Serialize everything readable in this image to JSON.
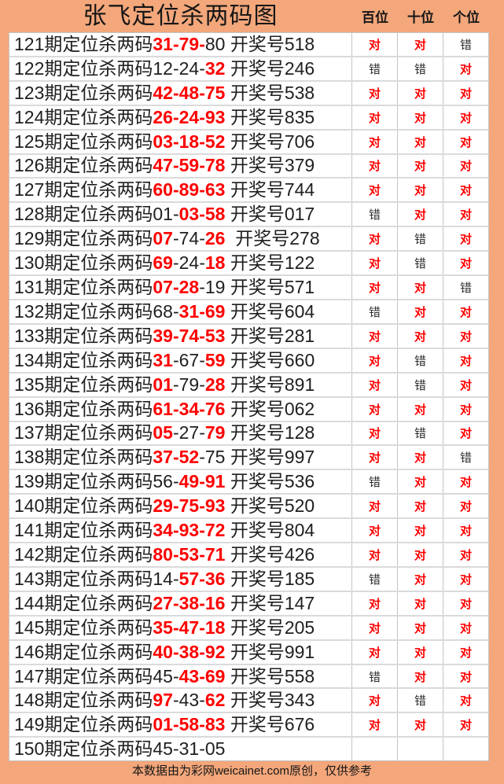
{
  "title": "张飞定位杀两码图",
  "column_headers": [
    "百位",
    "十位",
    "个位"
  ],
  "footer": "本数据由为彩网weicainet.com原创，仅供参考",
  "colors": {
    "background_orange": "#F3A77B",
    "hit_red": "#FF0000",
    "text_dark": "#202020",
    "grid_line": "#C4C4C4"
  },
  "rows": [
    {
      "parts": [
        {
          "t": "121期定位杀两码"
        },
        {
          "t": "31-79-",
          "red": true
        },
        {
          "t": "80"
        },
        {
          "t": " 开奖号518"
        }
      ],
      "results": [
        {
          "t": "对",
          "red": true
        },
        {
          "t": "对",
          "red": true
        },
        {
          "t": "错"
        }
      ]
    },
    {
      "parts": [
        {
          "t": "122期定位杀两码"
        },
        {
          "t": "12-24-"
        },
        {
          "t": "32",
          "red": true
        },
        {
          "t": " 开奖号246"
        }
      ],
      "results": [
        {
          "t": "错"
        },
        {
          "t": "错"
        },
        {
          "t": "对",
          "red": true
        }
      ]
    },
    {
      "parts": [
        {
          "t": "123期定位杀两码"
        },
        {
          "t": "42-48-75",
          "red": true
        },
        {
          "t": " 开奖号538"
        }
      ],
      "results": [
        {
          "t": "对",
          "red": true
        },
        {
          "t": "对",
          "red": true
        },
        {
          "t": "对",
          "red": true
        }
      ]
    },
    {
      "parts": [
        {
          "t": "124期定位杀两码"
        },
        {
          "t": "26-24-93",
          "red": true
        },
        {
          "t": " 开奖号835"
        }
      ],
      "results": [
        {
          "t": "对",
          "red": true
        },
        {
          "t": "对",
          "red": true
        },
        {
          "t": "对",
          "red": true
        }
      ]
    },
    {
      "parts": [
        {
          "t": "125期定位杀两码"
        },
        {
          "t": "03-18-52",
          "red": true
        },
        {
          "t": " 开奖号706"
        }
      ],
      "results": [
        {
          "t": "对",
          "red": true
        },
        {
          "t": "对",
          "red": true
        },
        {
          "t": "对",
          "red": true
        }
      ]
    },
    {
      "parts": [
        {
          "t": "126期定位杀两码"
        },
        {
          "t": "47-59-78",
          "red": true
        },
        {
          "t": " 开奖号379"
        }
      ],
      "results": [
        {
          "t": "对",
          "red": true
        },
        {
          "t": "对",
          "red": true
        },
        {
          "t": "对",
          "red": true
        }
      ]
    },
    {
      "parts": [
        {
          "t": "127期定位杀两码"
        },
        {
          "t": "60-89-63",
          "red": true
        },
        {
          "t": " 开奖号744"
        }
      ],
      "results": [
        {
          "t": "对",
          "red": true
        },
        {
          "t": "对",
          "red": true
        },
        {
          "t": "对",
          "red": true
        }
      ]
    },
    {
      "parts": [
        {
          "t": "128期定位杀两码"
        },
        {
          "t": "01-"
        },
        {
          "t": "03-58",
          "red": true
        },
        {
          "t": " 开奖号017"
        }
      ],
      "results": [
        {
          "t": "错"
        },
        {
          "t": "对",
          "red": true
        },
        {
          "t": "对",
          "red": true
        }
      ]
    },
    {
      "parts": [
        {
          "t": "129期定位杀两码"
        },
        {
          "t": "07",
          "red": true
        },
        {
          "t": "-74-"
        },
        {
          "t": "26",
          "red": true
        },
        {
          "t": "  开奖号278"
        }
      ],
      "results": [
        {
          "t": "对",
          "red": true
        },
        {
          "t": "错"
        },
        {
          "t": "对",
          "red": true
        }
      ]
    },
    {
      "parts": [
        {
          "t": "130期定位杀两码"
        },
        {
          "t": "69",
          "red": true
        },
        {
          "t": "-24-"
        },
        {
          "t": "18",
          "red": true
        },
        {
          "t": " 开奖号122"
        }
      ],
      "results": [
        {
          "t": "对",
          "red": true
        },
        {
          "t": "错"
        },
        {
          "t": "对",
          "red": true
        }
      ]
    },
    {
      "parts": [
        {
          "t": "131期定位杀两码"
        },
        {
          "t": "07-28",
          "red": true
        },
        {
          "t": "-19"
        },
        {
          "t": " 开奖号571"
        }
      ],
      "results": [
        {
          "t": "对",
          "red": true
        },
        {
          "t": "对",
          "red": true
        },
        {
          "t": "错"
        }
      ]
    },
    {
      "parts": [
        {
          "t": "132期定位杀两码"
        },
        {
          "t": "68-"
        },
        {
          "t": "31-69",
          "red": true
        },
        {
          "t": " 开奖号604"
        }
      ],
      "results": [
        {
          "t": "错"
        },
        {
          "t": "对",
          "red": true
        },
        {
          "t": "对",
          "red": true
        }
      ]
    },
    {
      "parts": [
        {
          "t": "133期定位杀两码"
        },
        {
          "t": "39-74-53",
          "red": true
        },
        {
          "t": " 开奖号281"
        }
      ],
      "results": [
        {
          "t": "对",
          "red": true
        },
        {
          "t": "对",
          "red": true
        },
        {
          "t": "对",
          "red": true
        }
      ]
    },
    {
      "parts": [
        {
          "t": "134期定位杀两码"
        },
        {
          "t": "31",
          "red": true
        },
        {
          "t": "-67-"
        },
        {
          "t": "59",
          "red": true
        },
        {
          "t": " 开奖号660"
        }
      ],
      "results": [
        {
          "t": "对",
          "red": true
        },
        {
          "t": "错"
        },
        {
          "t": "对",
          "red": true
        }
      ]
    },
    {
      "parts": [
        {
          "t": "135期定位杀两码"
        },
        {
          "t": "01",
          "red": true
        },
        {
          "t": "-79-"
        },
        {
          "t": "28",
          "red": true
        },
        {
          "t": " 开奖号891"
        }
      ],
      "results": [
        {
          "t": "对",
          "red": true
        },
        {
          "t": "错"
        },
        {
          "t": "对",
          "red": true
        }
      ]
    },
    {
      "parts": [
        {
          "t": "136期定位杀两码"
        },
        {
          "t": "61-34-76",
          "red": true
        },
        {
          "t": " 开奖号062"
        }
      ],
      "results": [
        {
          "t": "对",
          "red": true
        },
        {
          "t": "对",
          "red": true
        },
        {
          "t": "对",
          "red": true
        }
      ]
    },
    {
      "parts": [
        {
          "t": "137期定位杀两码"
        },
        {
          "t": "05",
          "red": true
        },
        {
          "t": "-27-"
        },
        {
          "t": "79",
          "red": true
        },
        {
          "t": " 开奖号128"
        }
      ],
      "results": [
        {
          "t": "对",
          "red": true
        },
        {
          "t": "错"
        },
        {
          "t": "对",
          "red": true
        }
      ]
    },
    {
      "parts": [
        {
          "t": "138期定位杀两码"
        },
        {
          "t": "37-52",
          "red": true
        },
        {
          "t": "-75"
        },
        {
          "t": " 开奖号997"
        }
      ],
      "results": [
        {
          "t": "对",
          "red": true
        },
        {
          "t": "对",
          "red": true
        },
        {
          "t": "错"
        }
      ]
    },
    {
      "parts": [
        {
          "t": "139期定位杀两码"
        },
        {
          "t": "56-"
        },
        {
          "t": "49-91",
          "red": true
        },
        {
          "t": " 开奖号536"
        }
      ],
      "results": [
        {
          "t": "错"
        },
        {
          "t": "对",
          "red": true
        },
        {
          "t": "对",
          "red": true
        }
      ]
    },
    {
      "parts": [
        {
          "t": "140期定位杀两码"
        },
        {
          "t": "29-75-93",
          "red": true
        },
        {
          "t": " 开奖号520"
        }
      ],
      "results": [
        {
          "t": "对",
          "red": true
        },
        {
          "t": "对",
          "red": true
        },
        {
          "t": "对",
          "red": true
        }
      ]
    },
    {
      "parts": [
        {
          "t": "141期定位杀两码"
        },
        {
          "t": "34-93-72",
          "red": true
        },
        {
          "t": " 开奖号804"
        }
      ],
      "results": [
        {
          "t": "对",
          "red": true
        },
        {
          "t": "对",
          "red": true
        },
        {
          "t": "对",
          "red": true
        }
      ]
    },
    {
      "parts": [
        {
          "t": "142期定位杀两码"
        },
        {
          "t": "80-53-71",
          "red": true
        },
        {
          "t": " 开奖号426"
        }
      ],
      "results": [
        {
          "t": "对",
          "red": true
        },
        {
          "t": "对",
          "red": true
        },
        {
          "t": "对",
          "red": true
        }
      ]
    },
    {
      "parts": [
        {
          "t": "143期定位杀两码"
        },
        {
          "t": "14-"
        },
        {
          "t": "57-36",
          "red": true
        },
        {
          "t": " 开奖号185"
        }
      ],
      "results": [
        {
          "t": "错"
        },
        {
          "t": "对",
          "red": true
        },
        {
          "t": "对",
          "red": true
        }
      ]
    },
    {
      "parts": [
        {
          "t": "144期定位杀两码"
        },
        {
          "t": "27-38-16",
          "red": true
        },
        {
          "t": " 开奖号147"
        }
      ],
      "results": [
        {
          "t": "对",
          "red": true
        },
        {
          "t": "对",
          "red": true
        },
        {
          "t": "对",
          "red": true
        }
      ]
    },
    {
      "parts": [
        {
          "t": "145期定位杀两码"
        },
        {
          "t": "35-47-18",
          "red": true
        },
        {
          "t": " 开奖号205"
        }
      ],
      "results": [
        {
          "t": "对",
          "red": true
        },
        {
          "t": "对",
          "red": true
        },
        {
          "t": "对",
          "red": true
        }
      ]
    },
    {
      "parts": [
        {
          "t": "146期定位杀两码"
        },
        {
          "t": "40-38-92",
          "red": true
        },
        {
          "t": " 开奖号991"
        }
      ],
      "results": [
        {
          "t": "对",
          "red": true
        },
        {
          "t": "对",
          "red": true
        },
        {
          "t": "对",
          "red": true
        }
      ]
    },
    {
      "parts": [
        {
          "t": "147期定位杀两码"
        },
        {
          "t": "45-"
        },
        {
          "t": "43-69",
          "red": true
        },
        {
          "t": " 开奖号558"
        }
      ],
      "results": [
        {
          "t": "错"
        },
        {
          "t": "对",
          "red": true
        },
        {
          "t": "对",
          "red": true
        }
      ]
    },
    {
      "parts": [
        {
          "t": "148期定位杀两码"
        },
        {
          "t": "97",
          "red": true
        },
        {
          "t": "-43-"
        },
        {
          "t": "62",
          "red": true
        },
        {
          "t": " 开奖号343"
        }
      ],
      "results": [
        {
          "t": "对",
          "red": true
        },
        {
          "t": "错"
        },
        {
          "t": "对",
          "red": true
        }
      ]
    },
    {
      "parts": [
        {
          "t": "149期定位杀两码"
        },
        {
          "t": "01-58-83",
          "red": true
        },
        {
          "t": " 开奖号676"
        }
      ],
      "results": [
        {
          "t": "对",
          "red": true
        },
        {
          "t": "对",
          "red": true
        },
        {
          "t": "对",
          "red": true
        }
      ]
    },
    {
      "parts": [
        {
          "t": "150期定位杀两码45-31-05"
        }
      ],
      "results": [
        {
          "t": ""
        },
        {
          "t": ""
        },
        {
          "t": ""
        }
      ]
    }
  ],
  "chart_data": {
    "type": "table",
    "title": "张飞定位杀两码图",
    "columns": [
      "期号",
      "定位杀两码",
      "开奖号",
      "百位",
      "十位",
      "个位"
    ],
    "rows": [
      [
        "121期",
        "31-79-80",
        "518",
        "对",
        "对",
        "错"
      ],
      [
        "122期",
        "12-24-32",
        "246",
        "错",
        "错",
        "对"
      ],
      [
        "123期",
        "42-48-75",
        "538",
        "对",
        "对",
        "对"
      ],
      [
        "124期",
        "26-24-93",
        "835",
        "对",
        "对",
        "对"
      ],
      [
        "125期",
        "03-18-52",
        "706",
        "对",
        "对",
        "对"
      ],
      [
        "126期",
        "47-59-78",
        "379",
        "对",
        "对",
        "对"
      ],
      [
        "127期",
        "60-89-63",
        "744",
        "对",
        "对",
        "对"
      ],
      [
        "128期",
        "01-03-58",
        "017",
        "错",
        "对",
        "对"
      ],
      [
        "129期",
        "07-74-26",
        "278",
        "对",
        "错",
        "对"
      ],
      [
        "130期",
        "69-24-18",
        "122",
        "对",
        "错",
        "对"
      ],
      [
        "131期",
        "07-28-19",
        "571",
        "对",
        "对",
        "错"
      ],
      [
        "132期",
        "68-31-69",
        "604",
        "错",
        "对",
        "对"
      ],
      [
        "133期",
        "39-74-53",
        "281",
        "对",
        "对",
        "对"
      ],
      [
        "134期",
        "31-67-59",
        "660",
        "对",
        "错",
        "对"
      ],
      [
        "135期",
        "01-79-28",
        "891",
        "对",
        "错",
        "对"
      ],
      [
        "136期",
        "61-34-76",
        "062",
        "对",
        "对",
        "对"
      ],
      [
        "137期",
        "05-27-79",
        "128",
        "对",
        "错",
        "对"
      ],
      [
        "138期",
        "37-52-75",
        "997",
        "对",
        "对",
        "错"
      ],
      [
        "139期",
        "56-49-91",
        "536",
        "错",
        "对",
        "对"
      ],
      [
        "140期",
        "29-75-93",
        "520",
        "对",
        "对",
        "对"
      ],
      [
        "141期",
        "34-93-72",
        "804",
        "对",
        "对",
        "对"
      ],
      [
        "142期",
        "80-53-71",
        "426",
        "对",
        "对",
        "对"
      ],
      [
        "143期",
        "14-57-36",
        "185",
        "错",
        "对",
        "对"
      ],
      [
        "144期",
        "27-38-16",
        "147",
        "对",
        "对",
        "对"
      ],
      [
        "145期",
        "35-47-18",
        "205",
        "对",
        "对",
        "对"
      ],
      [
        "146期",
        "40-38-92",
        "991",
        "对",
        "对",
        "对"
      ],
      [
        "147期",
        "45-43-69",
        "558",
        "错",
        "对",
        "对"
      ],
      [
        "148期",
        "97-43-62",
        "343",
        "对",
        "错",
        "对"
      ],
      [
        "149期",
        "01-58-83",
        "676",
        "对",
        "对",
        "对"
      ],
      [
        "150期",
        "45-31-05",
        "",
        "",
        "",
        ""
      ]
    ]
  }
}
